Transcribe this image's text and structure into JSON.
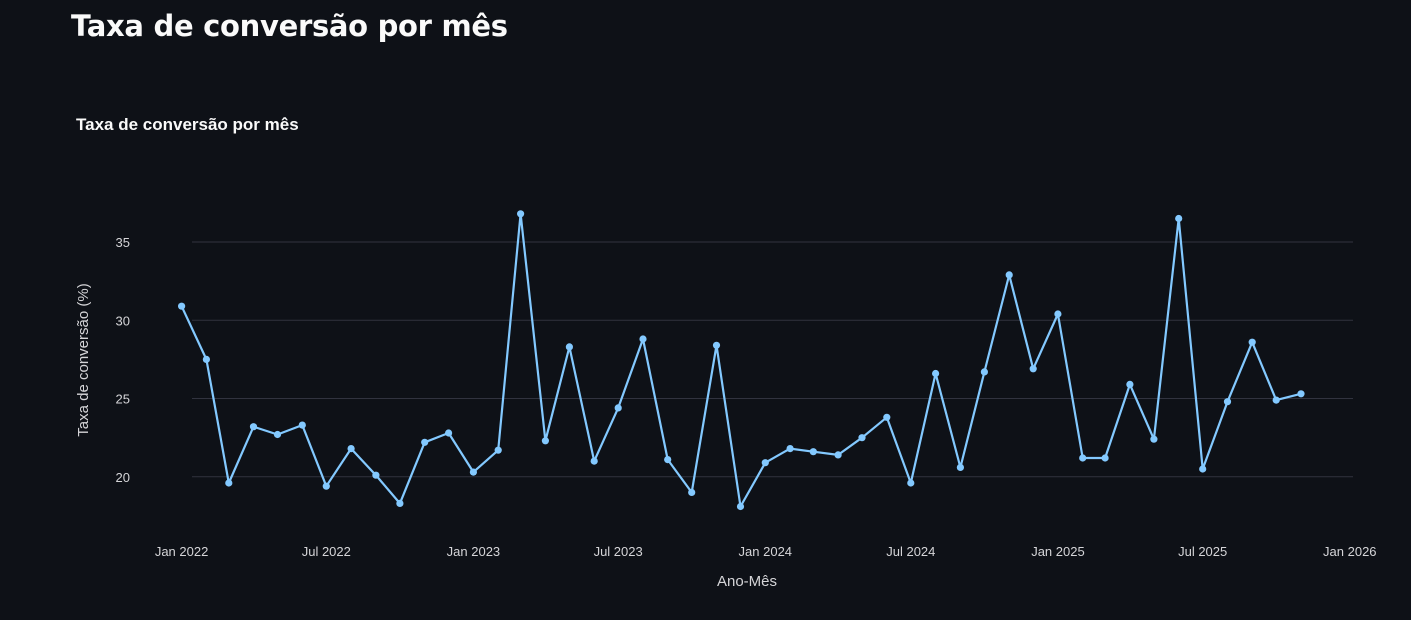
{
  "page": {
    "title": "Taxa de conversão por mês"
  },
  "chart_data": {
    "type": "line",
    "title": "Taxa de conversão por mês",
    "xlabel": "Ano-Mês",
    "ylabel": "Taxa de conversão (%)",
    "x_ticks": [
      "Jan 2022",
      "Jul 2022",
      "Jan 2023",
      "Jul 2023",
      "Jan 2024",
      "Jul 2024",
      "Jan 2025",
      "Jul 2025",
      "Jan 2026"
    ],
    "y_ticks": [
      20,
      25,
      30,
      35
    ],
    "xlim": [
      "2021-11-10",
      "2026-01-05"
    ],
    "ylim": [
      16.6,
      39.6
    ],
    "grid": "horizontal",
    "line_color": "#83c9ff",
    "series": [
      {
        "x": [
          "2022-01-01",
          "2022-02-01",
          "2022-03-01",
          "2022-04-01",
          "2022-05-01",
          "2022-06-01",
          "2022-07-01",
          "2022-08-01",
          "2022-09-01",
          "2022-10-01",
          "2022-11-01",
          "2022-12-01",
          "2023-01-01",
          "2023-02-01",
          "2023-03-01",
          "2023-04-01",
          "2023-05-01",
          "2023-06-01",
          "2023-07-01",
          "2023-08-01",
          "2023-09-01",
          "2023-10-01",
          "2023-11-01",
          "2023-12-01",
          "2024-01-01",
          "2024-02-01",
          "2024-03-01",
          "2024-04-01",
          "2024-05-01",
          "2024-06-01",
          "2024-07-01",
          "2024-08-01",
          "2024-09-01",
          "2024-10-01",
          "2024-11-01",
          "2024-12-01",
          "2025-01-01",
          "2025-02-01",
          "2025-03-01",
          "2025-04-01",
          "2025-05-01",
          "2025-06-01",
          "2025-07-01",
          "2025-08-01",
          "2025-09-01",
          "2025-10-01",
          "2025-11-01"
        ],
        "values": [
          30.9,
          27.5,
          19.6,
          23.2,
          22.7,
          23.3,
          19.4,
          21.8,
          20.1,
          18.3,
          22.2,
          22.8,
          20.3,
          21.7,
          36.8,
          22.3,
          28.3,
          21.0,
          24.4,
          28.8,
          21.1,
          19.0,
          28.4,
          18.1,
          20.9,
          21.8,
          21.6,
          21.4,
          22.5,
          23.8,
          19.6,
          26.6,
          20.6,
          26.7,
          32.9,
          26.9,
          30.4,
          21.2,
          21.2,
          25.9,
          22.4,
          36.5,
          20.5,
          24.8,
          28.6,
          24.9,
          25.3
        ]
      }
    ]
  }
}
